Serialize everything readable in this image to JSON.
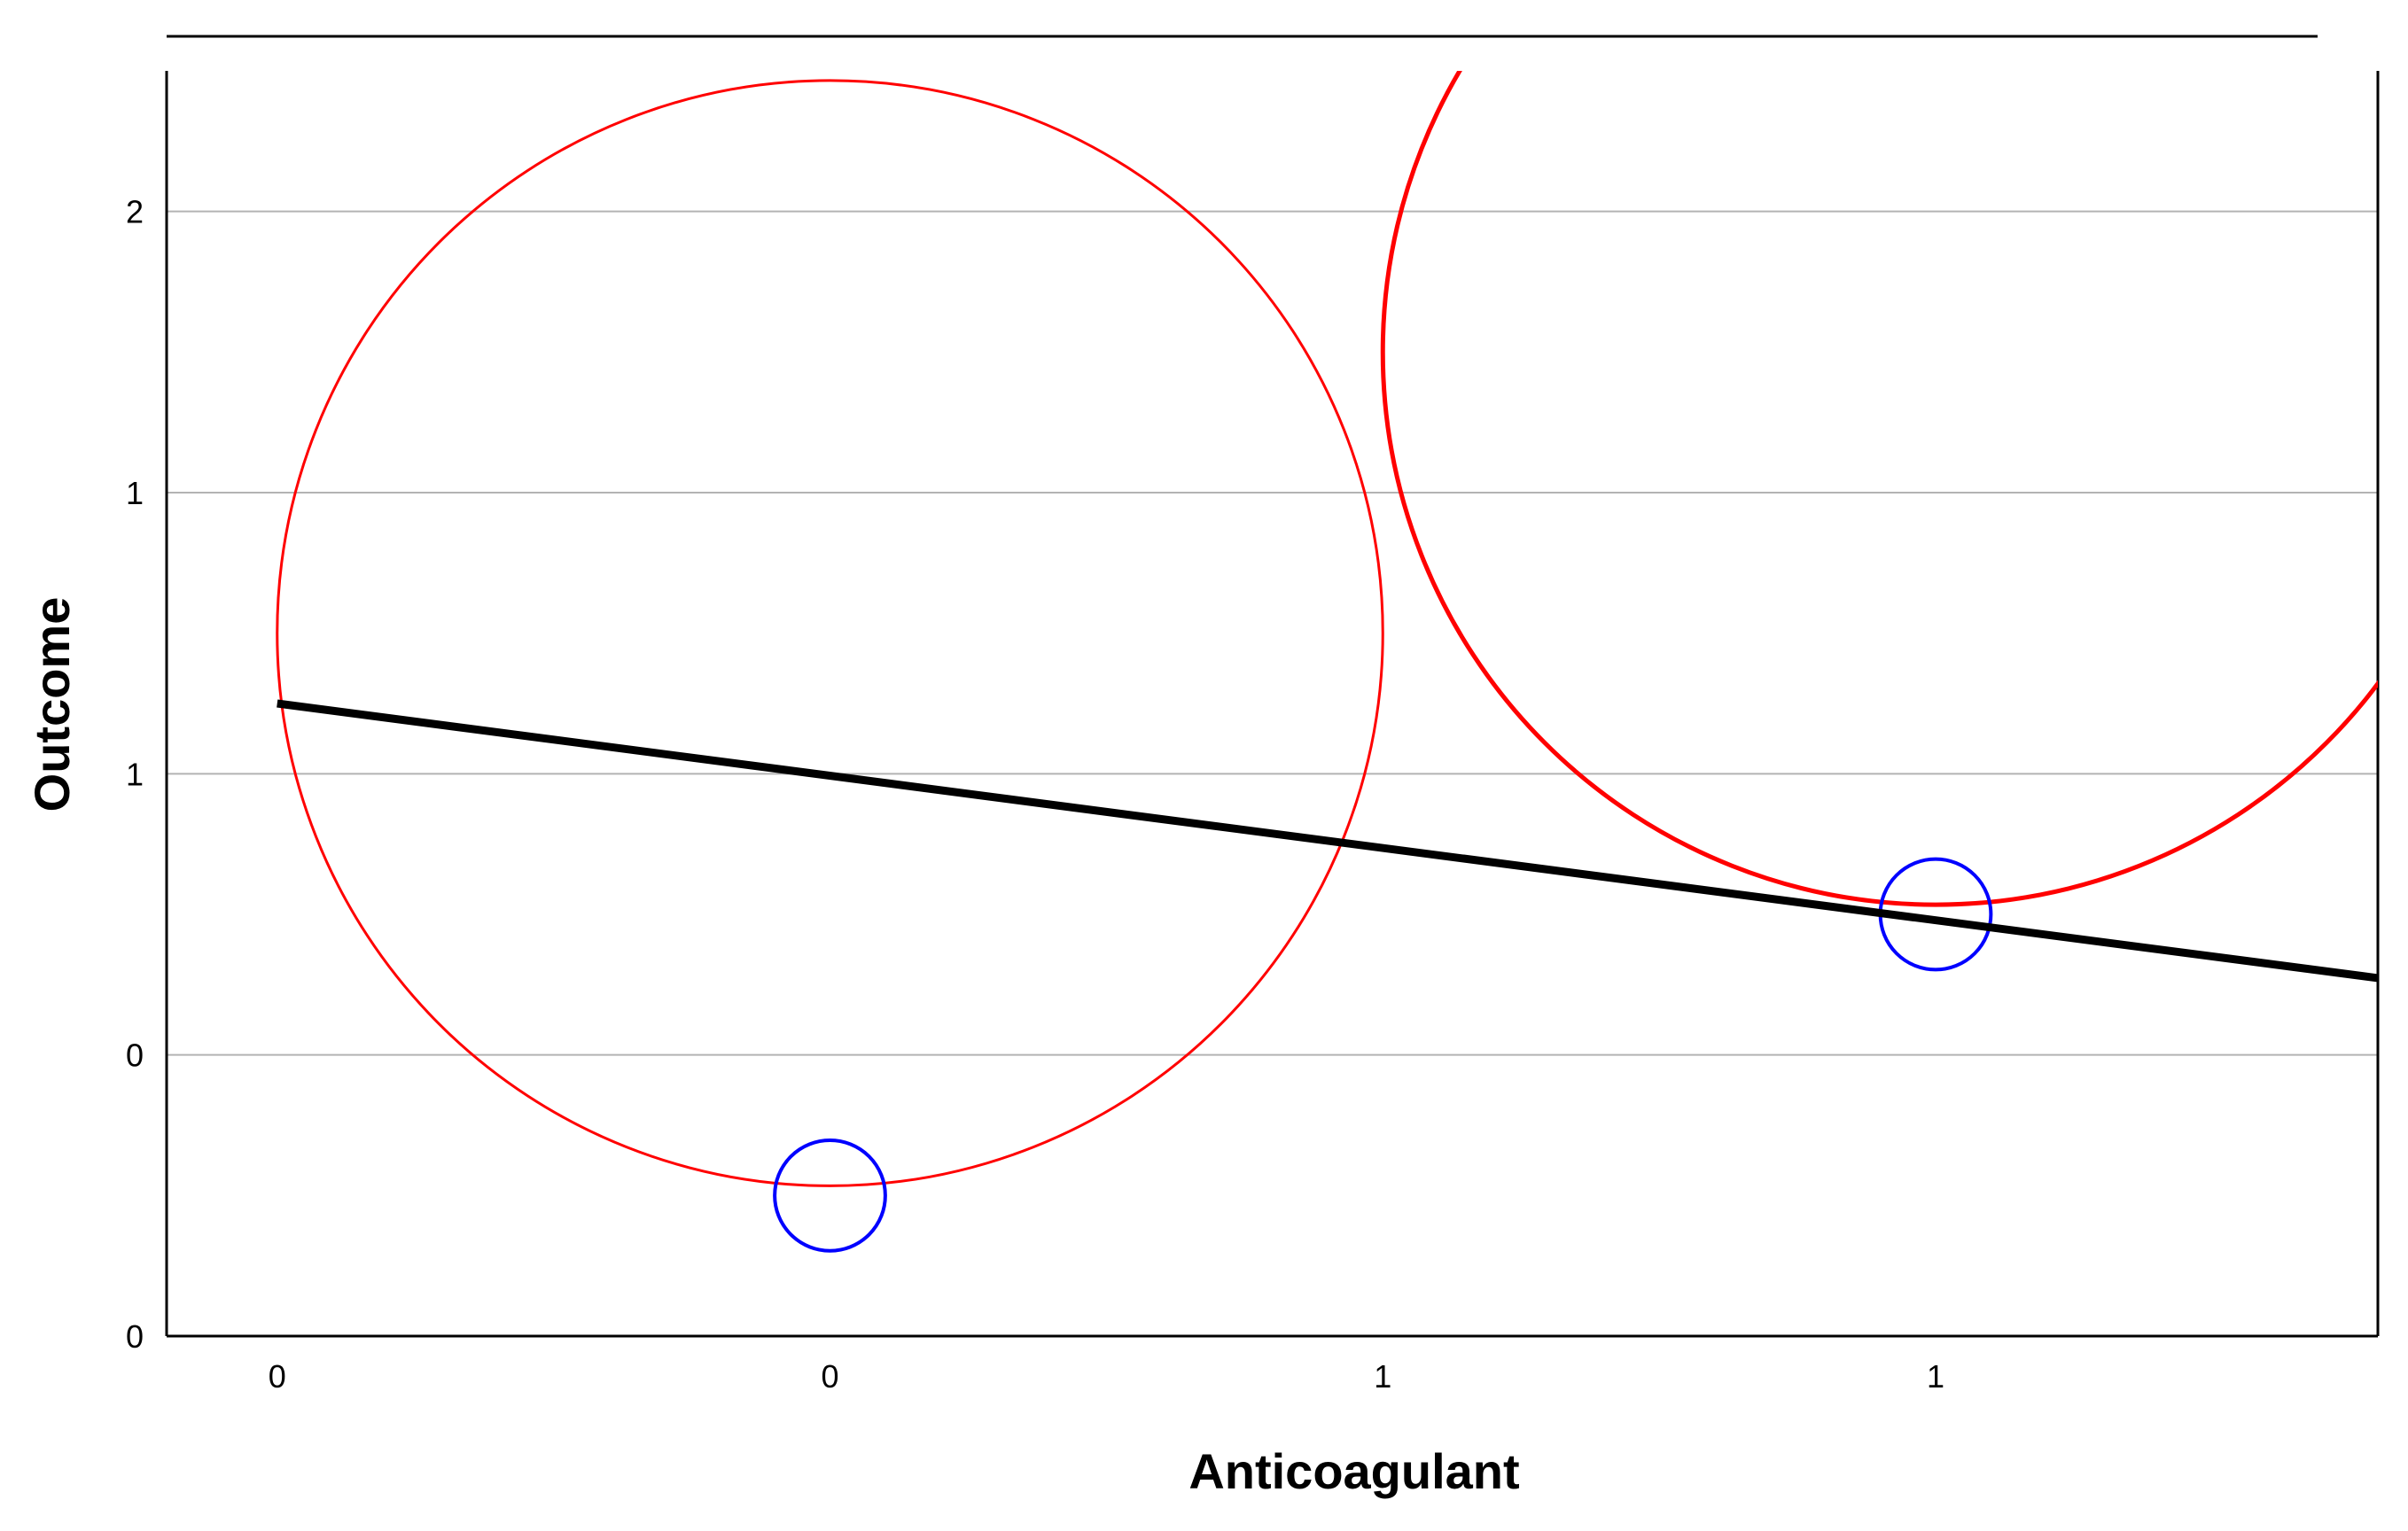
{
  "chart_data": {
    "type": "scatter",
    "title": "",
    "xlabel": "Anticoagulant",
    "ylabel": "Outcome",
    "x_tick_labels": [
      "0",
      "0",
      "1",
      "1"
    ],
    "y_tick_labels": [
      "0",
      "0",
      "1",
      "1",
      "2"
    ],
    "xlim": [
      -0.1,
      1.9
    ],
    "ylim": [
      -0.5,
      1.75
    ],
    "x_ticks": [
      0.0,
      0.5,
      1.0,
      1.5
    ],
    "y_ticks": [
      -0.5,
      0.0,
      0.5,
      1.0,
      1.5
    ],
    "grid": "horizontal",
    "legend": "none",
    "series": [
      {
        "points": [
          {
            "x": 0.5,
            "y": 0.75,
            "radius": 0.5
          },
          {
            "x": 1.5,
            "y": 1.25,
            "radius": 0.5
          }
        ],
        "color": "#ff0000"
      },
      {
        "points": [
          {
            "x": 0.5,
            "y": -0.25,
            "radius": 0.05
          },
          {
            "x": 1.5,
            "y": 0.25,
            "radius": 0.05
          }
        ],
        "color": "#0000ff"
      }
    ],
    "fit_line": {
      "color": "#000000",
      "points": [
        {
          "x": 0.0,
          "y": 0.625
        },
        {
          "x": 1.9,
          "y": 0.1367
        }
      ]
    }
  }
}
